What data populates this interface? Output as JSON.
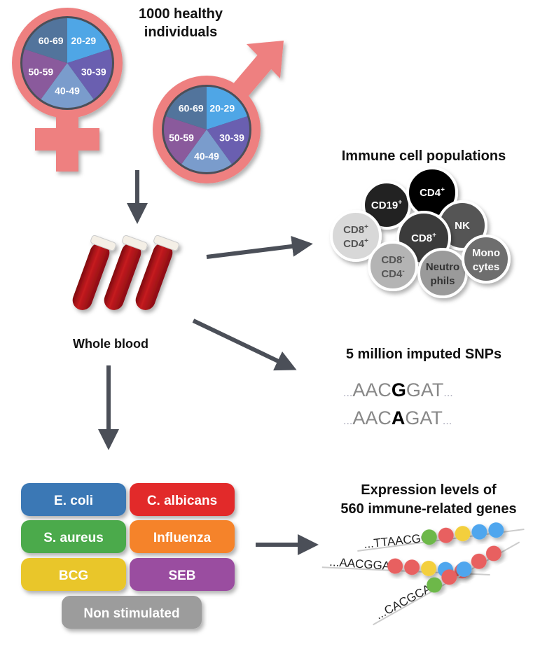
{
  "title": [
    "1000 healthy",
    "individuals"
  ],
  "age_groups": [
    "20-29",
    "30-39",
    "40-49",
    "50-59",
    "60-69"
  ],
  "colors": {
    "symbol": "#ee8080",
    "age_20_29": "#4fa6e6",
    "age_30_39": "#6a5fb0",
    "age_40_49": "#7a9ccc",
    "age_50_59": "#8a5a9c",
    "age_60_69": "#52749c",
    "arrow": "#4b4f58",
    "blood": "#b0141a"
  },
  "whole_blood_label": "Whole blood",
  "immune": {
    "title": "Immune cell populations",
    "cells": [
      {
        "line1": "CD19",
        "sup1": "+",
        "line2": "",
        "sup2": "",
        "fill": "#222222",
        "text": "#ffffff"
      },
      {
        "line1": "CD4",
        "sup1": "+",
        "line2": "",
        "sup2": "",
        "fill": "#000000",
        "text": "#ffffff"
      },
      {
        "line1": "NK",
        "sup1": "",
        "line2": "",
        "sup2": "",
        "fill": "#555555",
        "text": "#ffffff"
      },
      {
        "line1": "CD8",
        "sup1": "+",
        "line2": "CD4",
        "sup2": "+",
        "fill": "#d8d8d8",
        "text": "#555555"
      },
      {
        "line1": "CD8",
        "sup1": "+",
        "line2": "",
        "sup2": "",
        "fill": "#3a3a3a",
        "text": "#ffffff"
      },
      {
        "line1": "CD8",
        "sup1": "-",
        "line2": "CD4",
        "sup2": "-",
        "fill": "#b4b4b4",
        "text": "#555555"
      },
      {
        "line1": "Neutro",
        "sup1": "",
        "line2": "phils",
        "sup2": "",
        "fill": "#9a9a9a",
        "text": "#333333"
      },
      {
        "line1": "Mono",
        "sup1": "",
        "line2": "cytes",
        "sup2": "",
        "fill": "#6e6e6e",
        "text": "#ffffff"
      }
    ]
  },
  "snps": {
    "title": "5 million imputed SNPs",
    "rows": [
      {
        "prefix": "...",
        "before": "AAC",
        "variant": "G",
        "after": "GAT",
        "suffix": "..."
      },
      {
        "prefix": "...",
        "before": "AAC",
        "variant": "A",
        "after": "GAT",
        "suffix": "..."
      }
    ]
  },
  "stimuli": [
    {
      "label": "E. coli",
      "color": "#3a78b5"
    },
    {
      "label": "C. albicans",
      "color": "#e22b2b"
    },
    {
      "label": "S. aureus",
      "color": "#4caa4c"
    },
    {
      "label": "Influenza",
      "color": "#f5832b"
    },
    {
      "label": "BCG",
      "color": "#e9c62c"
    },
    {
      "label": "SEB",
      "color": "#9a4ea0"
    },
    {
      "label": "Non stimulated",
      "color": "#9c9c9c"
    }
  ],
  "expression": {
    "title": [
      "Expression levels of",
      "560 immune-related genes"
    ],
    "rows": [
      {
        "seq": "...TTAACGG",
        "beads": [
          "#6db84a",
          "#e86060",
          "#f3cf3c",
          "#4fa6ee",
          "#4fa6ee"
        ]
      },
      {
        "seq": "...AACGGAT",
        "beads": [
          "#e86060",
          "#e86060",
          "#f3cf3c",
          "#4fa6ee",
          "#e86060"
        ]
      },
      {
        "seq": "...CACGCAA",
        "beads": [
          "#6db84a",
          "#e86060",
          "#4fa6ee",
          "#e86060",
          "#e86060"
        ]
      }
    ]
  }
}
